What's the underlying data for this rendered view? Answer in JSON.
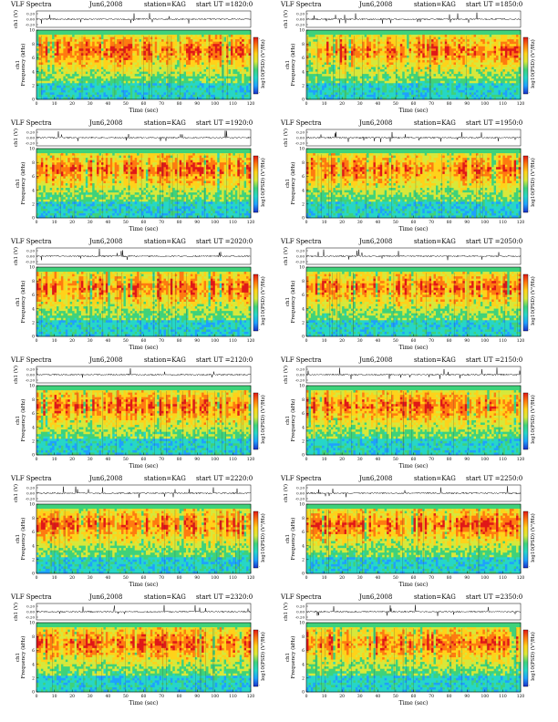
{
  "panel_header": {
    "title": "VLF Spectra",
    "date": "Jun6,2008",
    "station": "station=KAG",
    "start_prefix": "start  UT  ="
  },
  "axis_labels": {
    "waveform_ylabel": "ch1 (V)",
    "waveform_ticks": [
      "0.20",
      "0.00",
      "-0.20"
    ],
    "spectrogram_ylabel_channel": "ch1",
    "spectrogram_ylabel": "Frequency (kHz)",
    "frequency_ticks": [
      "0",
      "2",
      "4",
      "6",
      "8",
      "10"
    ],
    "time_ticks": [
      "0",
      "10",
      "20",
      "30",
      "40",
      "50",
      "60",
      "70",
      "80",
      "90",
      "100",
      "110",
      "120"
    ],
    "xlabel": "Time (sec)",
    "colorbar_label": "log10(PSD) (V²/Hz)",
    "colorbar_ticks": [
      "-",
      "-"
    ]
  },
  "panels": [
    {
      "start_ut": "1820:0"
    },
    {
      "start_ut": "1850:0"
    },
    {
      "start_ut": "1920:0"
    },
    {
      "start_ut": "1950:0"
    },
    {
      "start_ut": "2020:0"
    },
    {
      "start_ut": "2050:0"
    },
    {
      "start_ut": "2120:0"
    },
    {
      "start_ut": "2150:0"
    },
    {
      "start_ut": "2220:0"
    },
    {
      "start_ut": "2250:0"
    },
    {
      "start_ut": "2320:0"
    },
    {
      "start_ut": "2350:0"
    }
  ],
  "chart_data": {
    "type": "heatmap",
    "panel_count": 12,
    "xlabel": "Time (sec)",
    "ylabel": "Frequency (kHz)",
    "xlim": [
      0,
      120
    ],
    "ylim": [
      0,
      10
    ],
    "waveform_ylim": [
      -0.2,
      0.2
    ],
    "colormap": [
      "#1a2fc9",
      "#1fa0ff",
      "#26d6c8",
      "#3fd27a",
      "#d8e83a",
      "#ffd21a",
      "#ff7a10",
      "#e01818"
    ],
    "colors": {
      "low": "#2ad3c7",
      "mid": "#45cf68",
      "band": "#e8e020",
      "high": "#e01818",
      "upper_cutoff": "#20c6e6"
    },
    "band_center_khz": 7,
    "upper_cutoff_khz": 10.5
  }
}
